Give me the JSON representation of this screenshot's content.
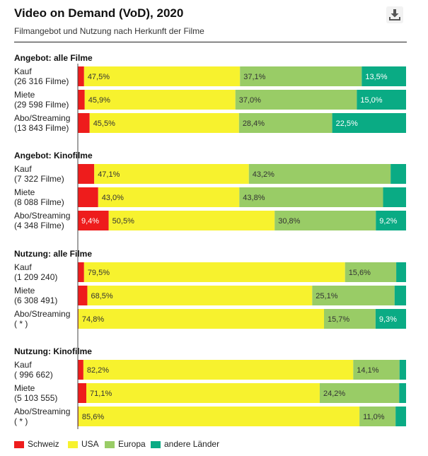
{
  "header": {
    "title": "Video on Demand (VoD), 2020",
    "subtitle": "Filmangebot und Nutzung nach Herkunft der Filme",
    "download_icon": "download-icon"
  },
  "colors": {
    "Schweiz": "#ee1c1c",
    "USA": "#f7f22e",
    "Europa": "#99cc66",
    "andere Länder": "#0aab84"
  },
  "chart_data": {
    "type": "bar",
    "orientation": "horizontal",
    "stacked": "100%",
    "unit": "%",
    "series_names": [
      "Schweiz",
      "USA",
      "Europa",
      "andere Länder"
    ],
    "groups": [
      {
        "title": "Angebot: alle Filme",
        "rows": [
          {
            "label": [
              "Kauf",
              "(26 316 Filme)"
            ],
            "values": [
              1.9,
              47.5,
              37.1,
              13.5
            ],
            "labels": [
              "",
              "47,5%",
              "37,1%",
              "13,5%"
            ]
          },
          {
            "label": [
              "Miete",
              "(29 598 Filme)"
            ],
            "values": [
              2.1,
              45.9,
              37.0,
              15.0
            ],
            "labels": [
              "",
              "45,9%",
              "37,0%",
              "15,0%"
            ]
          },
          {
            "label": [
              "Abo/Streaming",
              "(13 843 Filme)"
            ],
            "values": [
              3.6,
              45.5,
              28.4,
              22.5
            ],
            "labels": [
              "",
              "45,5%",
              "28,4%",
              "22,5%"
            ]
          }
        ]
      },
      {
        "title": "Angebot: Kinofilme",
        "rows": [
          {
            "label": [
              "Kauf",
              "(7 322 Filme)"
            ],
            "values": [
              5.0,
              47.1,
              43.2,
              4.7
            ],
            "labels": [
              "",
              "47,1%",
              "43,2%",
              ""
            ]
          },
          {
            "label": [
              "Miete",
              "(8 088 Filme)"
            ],
            "values": [
              6.2,
              43.0,
              43.8,
              7.0
            ],
            "labels": [
              "",
              "43,0%",
              "43,8%",
              ""
            ]
          },
          {
            "label": [
              "Abo/Streaming",
              "(4 348 Filme)"
            ],
            "values": [
              9.4,
              50.5,
              30.8,
              9.2
            ],
            "labels": [
              "9,4%",
              "50,5%",
              "30,8%",
              "9,2%"
            ]
          }
        ]
      },
      {
        "title": "Nutzung: alle Filme",
        "rows": [
          {
            "label": [
              "Kauf",
              "(1 209 240)"
            ],
            "values": [
              1.9,
              79.5,
              15.6,
              3.0
            ],
            "labels": [
              "",
              "79,5%",
              "15,6%",
              ""
            ]
          },
          {
            "label": [
              "Miete",
              "(6 308 491)"
            ],
            "values": [
              2.9,
              68.5,
              25.1,
              3.5
            ],
            "labels": [
              "",
              "68,5%",
              "25,1%",
              ""
            ]
          },
          {
            "label": [
              "Abo/Streaming",
              "( * )"
            ],
            "values": [
              0.2,
              74.8,
              15.7,
              9.3
            ],
            "labels": [
              "",
              "74,8%",
              "15,7%",
              "9,3%"
            ]
          }
        ]
      },
      {
        "title": "Nutzung: Kinofilme",
        "rows": [
          {
            "label": [
              "Kauf",
              "( 996 662)"
            ],
            "values": [
              1.7,
              82.2,
              14.1,
              2.0
            ],
            "labels": [
              "",
              "82,2%",
              "14,1%",
              ""
            ]
          },
          {
            "label": [
              "Miete",
              "(5 103 555)"
            ],
            "values": [
              2.6,
              71.1,
              24.2,
              2.1
            ],
            "labels": [
              "",
              "71,1%",
              "24,2%",
              ""
            ]
          },
          {
            "label": [
              "Abo/Streaming",
              "( * )"
            ],
            "values": [
              0.2,
              85.6,
              11.0,
              3.2
            ],
            "labels": [
              "",
              "85,6%",
              "11,0%",
              ""
            ]
          }
        ]
      }
    ],
    "legend": {
      "placement": "bottom-left",
      "items": [
        "Schweiz",
        "USA",
        "Europa",
        "andere Länder"
      ]
    }
  }
}
